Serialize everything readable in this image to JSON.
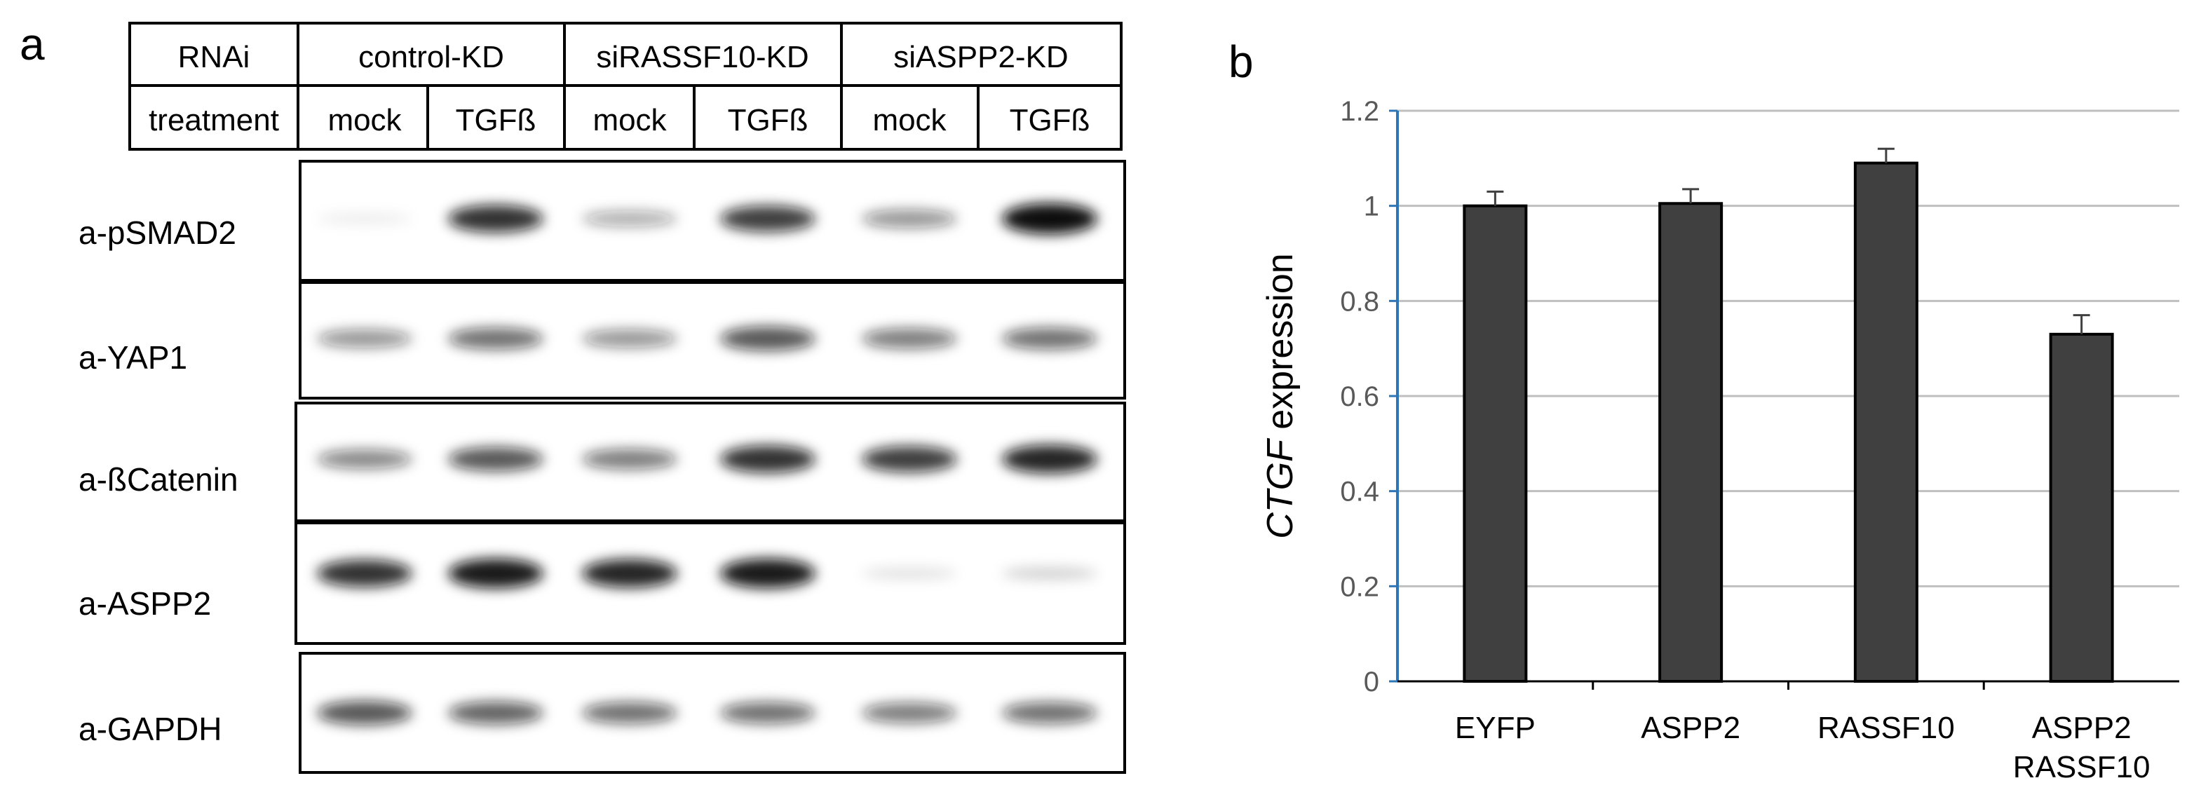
{
  "panel_a": {
    "letter": "a",
    "header": {
      "row1_label": "RNAi",
      "row2_label": "treatment",
      "groups": [
        "control-KD",
        "siRASSF10-KD",
        "siASPP2-KD"
      ],
      "treatments": [
        "mock",
        "TGFß",
        "mock",
        "TGFß",
        "mock",
        "TGFß"
      ]
    },
    "blots": [
      {
        "label": "a-pSMAD2",
        "intensities": [
          0.08,
          0.85,
          0.35,
          0.8,
          0.45,
          1.0
        ]
      },
      {
        "label": "a-YAP1",
        "intensities": [
          0.45,
          0.6,
          0.45,
          0.7,
          0.55,
          0.6
        ]
      },
      {
        "label": "a-ßCatenin",
        "intensities": [
          0.5,
          0.7,
          0.55,
          0.85,
          0.8,
          0.9
        ]
      },
      {
        "label": "a-ASPP2",
        "intensities": [
          0.85,
          0.95,
          0.9,
          0.95,
          0.12,
          0.18
        ]
      },
      {
        "label": "a-GAPDH",
        "intensities": [
          0.7,
          0.65,
          0.6,
          0.6,
          0.55,
          0.6
        ]
      }
    ],
    "band_color": "#111111"
  },
  "panel_b": {
    "letter": "b",
    "chart_data": {
      "type": "bar",
      "categories": [
        [
          "EYFP"
        ],
        [
          "ASPP2"
        ],
        [
          "RASSF10"
        ],
        [
          "ASPP2",
          "RASSF10"
        ]
      ],
      "values": [
        1.0,
        1.005,
        1.09,
        0.73
      ],
      "errors": [
        0.03,
        0.03,
        0.03,
        0.04
      ],
      "ylabel_italic": "CTGF",
      "ylabel_rest": " expression",
      "ylim": [
        0,
        1.2
      ],
      "yticks": [
        "0",
        "0.2",
        "0.4",
        "0.6",
        "0.8",
        "1",
        "1.2"
      ],
      "grid": true,
      "bar_color": "#404040",
      "axis_color": "#2e75b6",
      "grid_color": "#bfbfbf"
    }
  }
}
